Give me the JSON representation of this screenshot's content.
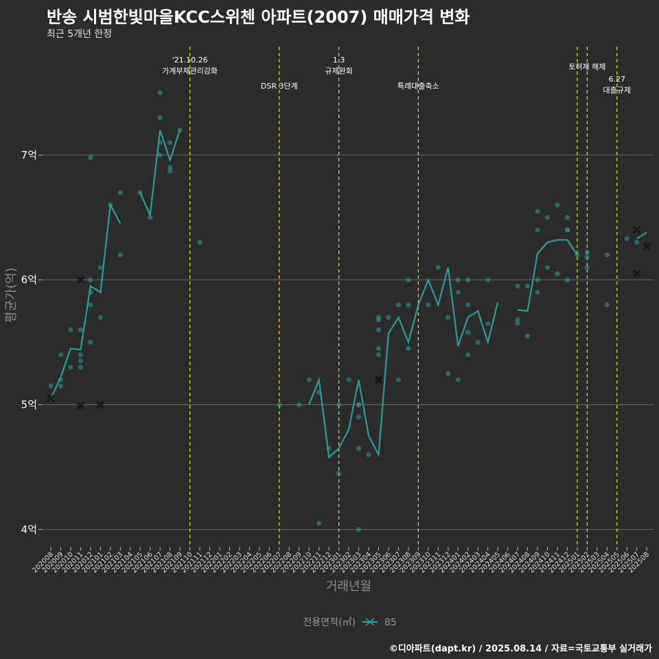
{
  "title": "반송 시범한빛마을KCC스위첸 아파트(2007) 매매가격 변화",
  "subtitle": "최근 5개년 한정",
  "caption": "©디아파트(dapt.kr) / 2025.08.14 / 자료=국토교통부 실거래가",
  "colors": {
    "background": "#2b2b2b",
    "series": "#2a9d9a",
    "event_line": "#e5e51a",
    "grid": "#6a6a6a"
  },
  "chart_data": {
    "type": "line",
    "xlabel": "거래년월",
    "ylabel": "평균가(억)",
    "ylim": [
      3.87,
      7.94
    ],
    "yticks": [
      4,
      5,
      6,
      7
    ],
    "ytick_labels": [
      "4억",
      "5억",
      "6억",
      "7억"
    ],
    "categories": [
      "202008",
      "202009",
      "202010",
      "202011",
      "202012",
      "202101",
      "202102",
      "202103",
      "202104",
      "202105",
      "202106",
      "202107",
      "202108",
      "202109",
      "202110",
      "202111",
      "202112",
      "202201",
      "202202",
      "202203",
      "202204",
      "202205",
      "202206",
      "202207",
      "202208",
      "202209",
      "202210",
      "202211",
      "202212",
      "202301",
      "202302",
      "202303",
      "202304",
      "202305",
      "202306",
      "202307",
      "202308",
      "202309",
      "202310",
      "202311",
      "202312",
      "202401",
      "202402",
      "202403",
      "202404",
      "202405",
      "202406",
      "202407",
      "202408",
      "202409",
      "202410",
      "202411",
      "202412",
      "202501",
      "202502",
      "202503",
      "202504",
      "202505",
      "202506",
      "202507",
      "202508"
    ],
    "legend": {
      "title": "전용면적(㎡)",
      "entries": [
        "85"
      ],
      "position": "bottom"
    },
    "series": [
      {
        "name": "85",
        "line": [
          [
            [
              "202008",
              5.05
            ],
            [
              "202009",
              5.22
            ],
            [
              "202010",
              5.45
            ],
            [
              "202011",
              5.44
            ],
            [
              "202012",
              5.95
            ],
            [
              "202101",
              5.9
            ],
            [
              "202102",
              6.6
            ],
            [
              "202103",
              6.45
            ]
          ],
          [
            [
              "202105",
              6.7
            ],
            [
              "202106",
              6.52
            ],
            [
              "202107",
              7.2
            ],
            [
              "202108",
              6.96
            ],
            [
              "202109",
              7.2
            ]
          ],
          [
            [
              "202210",
              5.0
            ],
            [
              "202211",
              5.2
            ],
            [
              "202212",
              4.58
            ],
            [
              "202301",
              4.65
            ],
            [
              "202302",
              4.8
            ],
            [
              "202303",
              5.2
            ],
            [
              "202304",
              4.75
            ],
            [
              "202305",
              4.6
            ],
            [
              "202306",
              5.57
            ],
            [
              "202307",
              5.7
            ],
            [
              "202308",
              5.5
            ],
            [
              "202309",
              5.8
            ],
            [
              "202310",
              6.0
            ],
            [
              "202311",
              5.8
            ],
            [
              "202312",
              6.1
            ],
            [
              "202401",
              5.47
            ],
            [
              "202402",
              5.7
            ],
            [
              "202403",
              5.75
            ],
            [
              "202404",
              5.5
            ],
            [
              "202405",
              5.82
            ]
          ],
          [
            [
              "202407",
              5.76
            ],
            [
              "202408",
              5.75
            ],
            [
              "202409",
              6.21
            ],
            [
              "202410",
              6.3
            ],
            [
              "202411",
              6.32
            ],
            [
              "202412",
              6.32
            ],
            [
              "202501",
              6.2
            ]
          ],
          [
            [
              "202507",
              6.33
            ],
            [
              "202508",
              6.38
            ]
          ]
        ],
        "points": [
          [
            "202008",
            5.15
          ],
          [
            "202008",
            5.05
          ],
          [
            "202009",
            5.15
          ],
          [
            "202009",
            5.2
          ],
          [
            "202009",
            5.4
          ],
          [
            "202010",
            5.3
          ],
          [
            "202010",
            5.6
          ],
          [
            "202011",
            5.6
          ],
          [
            "202011",
            5.4
          ],
          [
            "202011",
            5.35
          ],
          [
            "202011",
            5.3
          ],
          [
            "202012",
            6.98
          ],
          [
            "202012",
            6.0
          ],
          [
            "202012",
            5.9
          ],
          [
            "202012",
            5.8
          ],
          [
            "202012",
            5.5
          ],
          [
            "202101",
            6.1
          ],
          [
            "202101",
            5.7
          ],
          [
            "202102",
            6.6
          ],
          [
            "202103",
            6.7
          ],
          [
            "202103",
            6.2
          ],
          [
            "202105",
            6.7
          ],
          [
            "202106",
            6.5
          ],
          [
            "202107",
            7.5
          ],
          [
            "202107",
            7.3
          ],
          [
            "202107",
            7.1
          ],
          [
            "202107",
            7.0
          ],
          [
            "202108",
            7.1
          ],
          [
            "202108",
            6.9
          ],
          [
            "202108",
            6.87
          ],
          [
            "202109",
            7.2
          ],
          [
            "202111",
            6.3
          ],
          [
            "202207",
            5.0
          ],
          [
            "202209",
            5.0
          ],
          [
            "202210",
            5.2
          ],
          [
            "202211",
            5.1
          ],
          [
            "202211",
            4.05
          ],
          [
            "202212",
            4.65
          ],
          [
            "202301",
            5.0
          ],
          [
            "202301",
            4.45
          ],
          [
            "202302",
            5.2
          ],
          [
            "202303",
            5.0
          ],
          [
            "202303",
            5.0
          ],
          [
            "202303",
            4.9
          ],
          [
            "202303",
            4.65
          ],
          [
            "202303",
            4.0
          ],
          [
            "202304",
            4.6
          ],
          [
            "202305",
            5.7
          ],
          [
            "202305",
            5.68
          ],
          [
            "202305",
            5.6
          ],
          [
            "202305",
            5.45
          ],
          [
            "202305",
            5.4
          ],
          [
            "202306",
            5.7
          ],
          [
            "202307",
            5.8
          ],
          [
            "202307",
            5.2
          ],
          [
            "202308",
            6.0
          ],
          [
            "202308",
            5.8
          ],
          [
            "202308",
            5.45
          ],
          [
            "202310",
            5.8
          ],
          [
            "202311",
            6.1
          ],
          [
            "202312",
            5.7
          ],
          [
            "202312",
            5.25
          ],
          [
            "202401",
            6.0
          ],
          [
            "202401",
            5.9
          ],
          [
            "202401",
            5.2
          ],
          [
            "202402",
            6.0
          ],
          [
            "202402",
            5.8
          ],
          [
            "202402",
            5.58
          ],
          [
            "202402",
            5.4
          ],
          [
            "202403",
            5.5
          ],
          [
            "202404",
            6.0
          ],
          [
            "202404",
            5.65
          ],
          [
            "202407",
            5.95
          ],
          [
            "202407",
            5.68
          ],
          [
            "202407",
            5.65
          ],
          [
            "202408",
            5.95
          ],
          [
            "202408",
            5.55
          ],
          [
            "202409",
            6.55
          ],
          [
            "202409",
            6.4
          ],
          [
            "202409",
            6.0
          ],
          [
            "202409",
            5.9
          ],
          [
            "202410",
            6.5
          ],
          [
            "202410",
            6.1
          ],
          [
            "202411",
            6.6
          ],
          [
            "202411",
            6.05
          ],
          [
            "202412",
            6.5
          ],
          [
            "202412",
            6.4
          ],
          [
            "202412",
            6.4
          ],
          [
            "202412",
            6.0
          ],
          [
            "202501",
            6.2
          ],
          [
            "202502",
            6.22
          ],
          [
            "202502",
            6.18
          ],
          [
            "202502",
            6.1
          ],
          [
            "202504",
            6.2
          ],
          [
            "202504",
            5.8
          ],
          [
            "202506",
            6.33
          ],
          [
            "202507",
            6.4
          ],
          [
            "202507",
            6.3
          ]
        ],
        "cancelled": [
          [
            "202008",
            5.05
          ],
          [
            "202011",
            6.0
          ],
          [
            "202011",
            4.99
          ],
          [
            "202101",
            5.0
          ],
          [
            "202305",
            5.2
          ],
          [
            "202507",
            6.4
          ],
          [
            "202507",
            6.05
          ],
          [
            "202508",
            6.27
          ]
        ]
      }
    ],
    "events": [
      {
        "x": 14.0,
        "lines": [
          "'21.10.26",
          "가계부채관리강화"
        ]
      },
      {
        "x": 23.0,
        "lines": [
          "DSR 3단계"
        ]
      },
      {
        "x": 29.0,
        "lines": [
          "1.3",
          "규제완화"
        ]
      },
      {
        "x": 37.0,
        "lines": [
          "특례대출축소"
        ]
      },
      {
        "x": 53.0,
        "lines": []
      },
      {
        "x": 54.0,
        "lines": [
          "토허제 해제"
        ]
      },
      {
        "x": 57.0,
        "lines": [
          "6.27",
          "대출규제"
        ]
      }
    ]
  }
}
